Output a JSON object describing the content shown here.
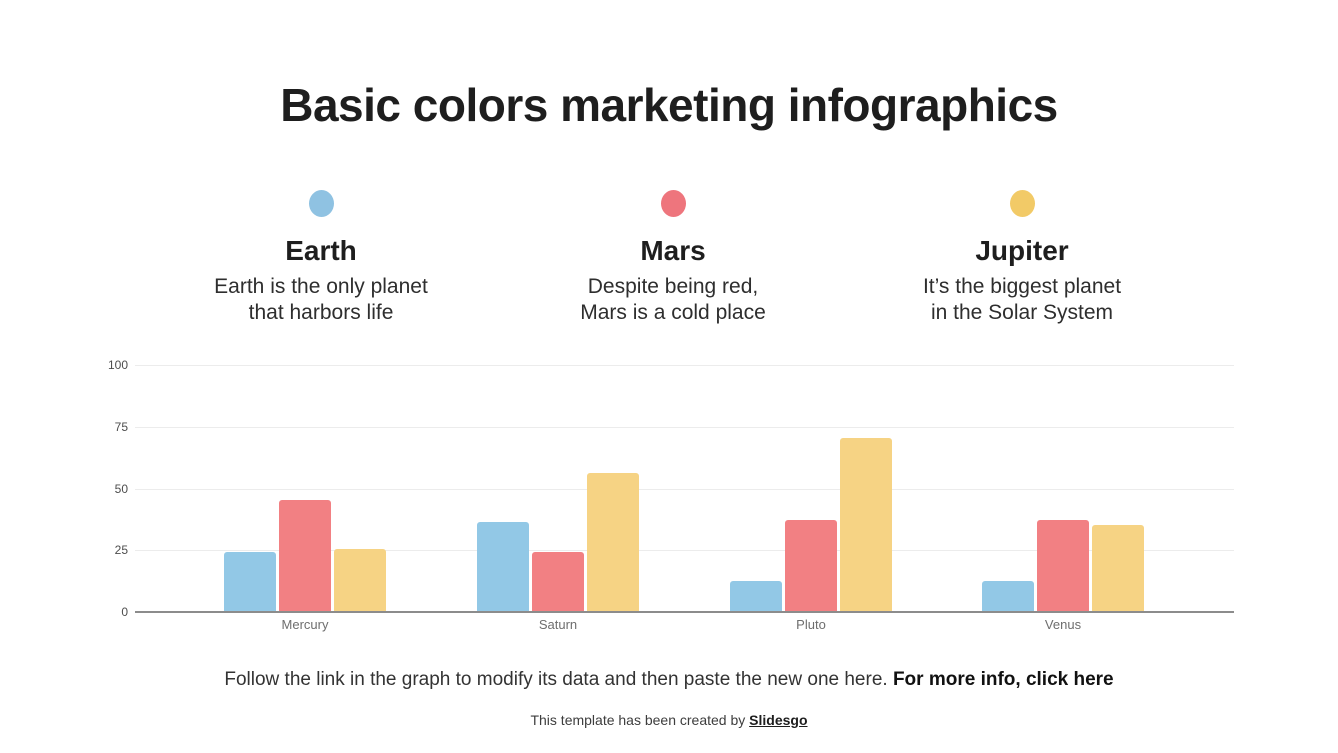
{
  "slide": {
    "title": "Basic colors marketing infographics",
    "legend_cards": [
      {
        "planet": "Earth",
        "dot_color": "#8FC2E2",
        "line1": "Earth is the only planet",
        "line2": "that harbors life"
      },
      {
        "planet": "Mars",
        "dot_color": "#EE757D",
        "line1": "Despite being red,",
        "line2": "Mars is a cold place"
      },
      {
        "planet": "Jupiter",
        "dot_color": "#F2CA67",
        "line1": "It’s the biggest planet",
        "line2": "in the Solar System"
      }
    ],
    "footer": {
      "instruction_regular": "Follow the link in the graph to modify its data and then paste the new one here. ",
      "instruction_bold": "For more info, click here",
      "credit_regular": "This template has been created by ",
      "credit_link": "Slidesgo"
    }
  },
  "chart_data": {
    "type": "bar",
    "title": "",
    "categories": [
      "Mercury",
      "Saturn",
      "Pluto",
      "Venus"
    ],
    "series": [
      {
        "name": "Earth",
        "color": "#92C8E6",
        "values": [
          24,
          36,
          12,
          12
        ]
      },
      {
        "name": "Mars",
        "color": "#F28083",
        "values": [
          45,
          24,
          37,
          37
        ]
      },
      {
        "name": "Jupiter",
        "color": "#F6D384",
        "values": [
          25,
          56,
          70,
          35
        ]
      }
    ],
    "ylim": [
      0,
      100
    ],
    "yticks": [
      0,
      25,
      50,
      75,
      100
    ],
    "grid": true,
    "legend_position": "above chart as planet cards",
    "axis_color": "#8c8c8c",
    "gridline_color": "#ececec",
    "tick_label_color": "#4d4d4d",
    "category_label_color": "#6e6e6e"
  }
}
